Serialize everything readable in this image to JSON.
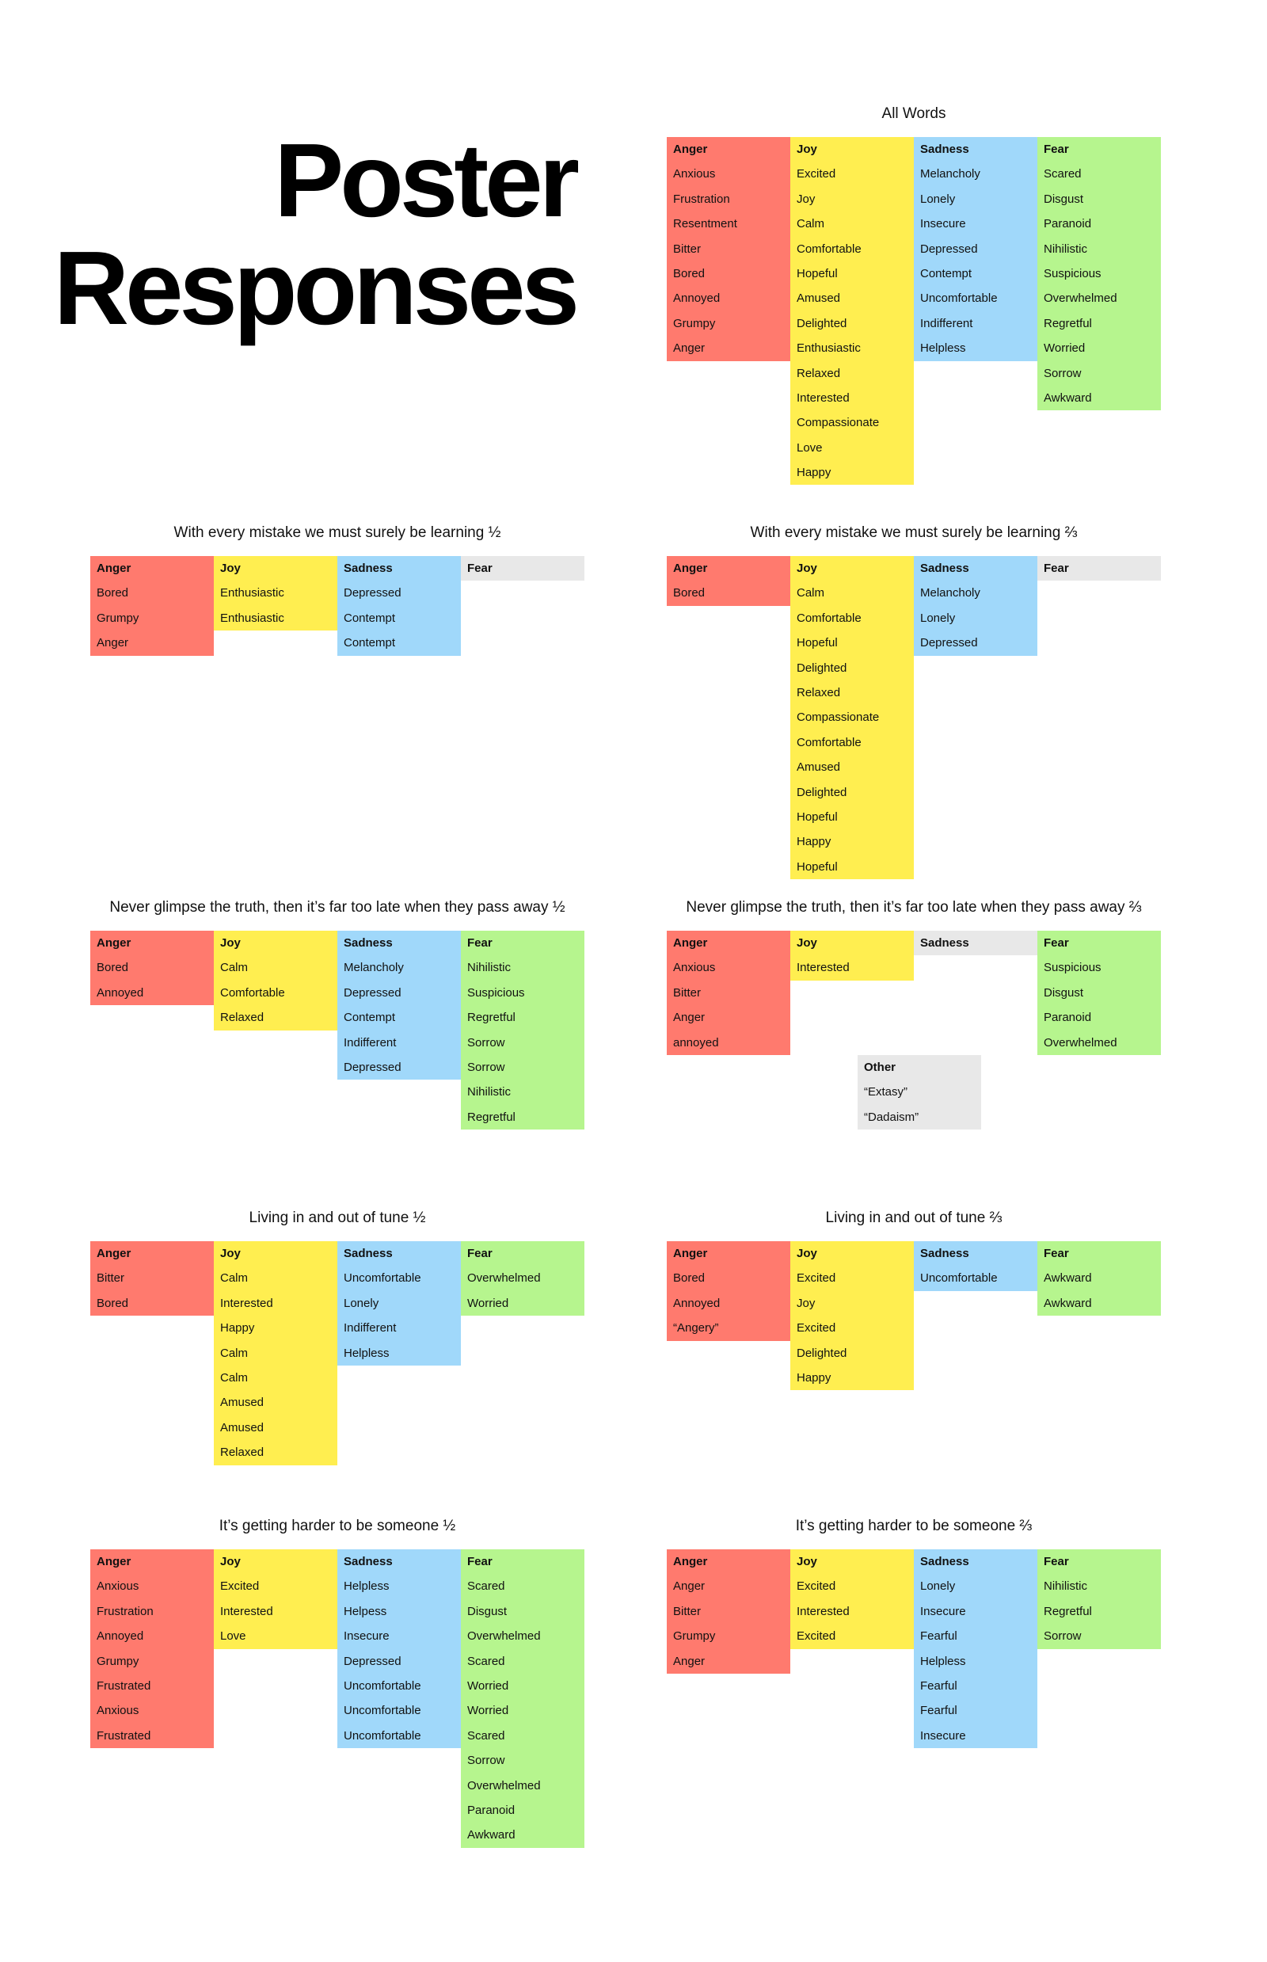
{
  "title": {
    "line1": "Poster",
    "line2": "Responses"
  },
  "colors": {
    "Anger": "#FF7A6E",
    "Joy": "#FFEE50",
    "Sadness": "#A0D8FA",
    "Fear": "#B6F58E",
    "empty": "#E8E8E8"
  },
  "sections": [
    {
      "title": "All Words",
      "columns": [
        {
          "label": "Anger",
          "words": [
            "Anxious",
            "Frustration",
            "Resentment",
            "Bitter",
            "Bored",
            "Annoyed",
            "Grumpy",
            "Anger"
          ]
        },
        {
          "label": "Joy",
          "words": [
            "Excited",
            "Joy",
            "Calm",
            "Comfortable",
            "Hopeful",
            "Amused",
            "Delighted",
            "Enthusiastic",
            "Relaxed",
            "Interested",
            "Compassionate",
            "Love",
            "Happy"
          ]
        },
        {
          "label": "Sadness",
          "words": [
            "Melancholy",
            "Lonely",
            "Insecure",
            "Depressed",
            "Contempt",
            "Uncomfortable",
            "Indifferent",
            "Helpless"
          ]
        },
        {
          "label": "Fear",
          "words": [
            "Scared",
            "Disgust",
            "Paranoid",
            "Nihilistic",
            "Suspicious",
            "Overwhelmed",
            "Regretful",
            "Worried",
            "Sorrow",
            "Awkward"
          ]
        }
      ]
    },
    {
      "title": "With every mistake we must surely be learning ½",
      "columns": [
        {
          "label": "Anger",
          "words": [
            "Bored",
            "Grumpy",
            "Anger"
          ]
        },
        {
          "label": "Joy",
          "words": [
            "Enthusiastic",
            "Enthusiastic"
          ]
        },
        {
          "label": "Sadness",
          "words": [
            "Depressed",
            "Contempt",
            "Contempt"
          ]
        },
        {
          "label": "Fear",
          "words": []
        }
      ]
    },
    {
      "title": "With every mistake we must surely be learning ⅔",
      "columns": [
        {
          "label": "Anger",
          "words": [
            "Bored"
          ]
        },
        {
          "label": "Joy",
          "words": [
            "Calm",
            "Comfortable",
            "Hopeful",
            "Delighted",
            "Relaxed",
            "Compassionate",
            "Comfortable",
            "Amused",
            "Delighted",
            "Hopeful",
            "Happy",
            "Hopeful"
          ]
        },
        {
          "label": "Sadness",
          "words": [
            "Melancholy",
            "Lonely",
            "Depressed"
          ]
        },
        {
          "label": "Fear",
          "words": []
        }
      ]
    },
    {
      "title": "Never glimpse the truth, then it’s far too late when they pass away ½",
      "columns": [
        {
          "label": "Anger",
          "words": [
            "Bored",
            "Annoyed"
          ]
        },
        {
          "label": "Joy",
          "words": [
            "Calm",
            "Comfortable",
            "Relaxed"
          ]
        },
        {
          "label": "Sadness",
          "words": [
            "Melancholy",
            "Depressed",
            "Contempt",
            "Indifferent",
            "Depressed"
          ]
        },
        {
          "label": "Fear",
          "words": [
            "Nihilistic",
            "Suspicious",
            "Regretful",
            "Sorrow",
            "Sorrow",
            "Nihilistic",
            "Regretful"
          ]
        }
      ]
    },
    {
      "title": "Never glimpse the truth, then it’s far too late when they pass away ⅔",
      "columns": [
        {
          "label": "Anger",
          "words": [
            "Anxious",
            "Bitter",
            "Anger",
            "annoyed"
          ]
        },
        {
          "label": "Joy",
          "words": [
            "Interested"
          ]
        },
        {
          "label": "Sadness",
          "words": []
        },
        {
          "label": "Fear",
          "words": [
            "Suspicious",
            "Disgust",
            "Paranoid",
            "Overwhelmed"
          ]
        }
      ],
      "other": {
        "label": "Other",
        "words": [
          "“Extasy”",
          "“Dadaism”"
        ]
      }
    },
    {
      "title": "Living in and out of tune ½",
      "columns": [
        {
          "label": "Anger",
          "words": [
            "Bitter",
            "Bored"
          ]
        },
        {
          "label": "Joy",
          "words": [
            "Calm",
            "Interested",
            "Happy",
            "Calm",
            "Calm",
            "Amused",
            "Amused",
            "Relaxed"
          ]
        },
        {
          "label": "Sadness",
          "words": [
            "Uncomfortable",
            "Lonely",
            "Indifferent",
            "Helpless"
          ]
        },
        {
          "label": "Fear",
          "words": [
            "Overwhelmed",
            "Worried"
          ]
        }
      ]
    },
    {
      "title": "Living in and out of tune ⅔",
      "columns": [
        {
          "label": "Anger",
          "words": [
            "Bored",
            "Annoyed",
            "“Angery”"
          ]
        },
        {
          "label": "Joy",
          "words": [
            "Excited",
            "Joy",
            "Excited",
            "Delighted",
            "Happy"
          ]
        },
        {
          "label": "Sadness",
          "words": [
            "Uncomfortable"
          ]
        },
        {
          "label": "Fear",
          "words": [
            "Awkward",
            "Awkward"
          ]
        }
      ]
    },
    {
      "title": "It’s getting harder to be someone ½",
      "columns": [
        {
          "label": "Anger",
          "words": [
            "Anxious",
            "Frustration",
            "Annoyed",
            "Grumpy",
            "Frustrated",
            "Anxious",
            "Frustrated"
          ]
        },
        {
          "label": "Joy",
          "words": [
            "Excited",
            "Interested",
            "Love"
          ]
        },
        {
          "label": "Sadness",
          "words": [
            "Helpless",
            "Helpess",
            "Insecure",
            "Depressed",
            "Uncomfortable",
            "Uncomfortable",
            "Uncomfortable"
          ]
        },
        {
          "label": "Fear",
          "words": [
            "Scared",
            "Disgust",
            "Overwhelmed",
            "Scared",
            "Worried",
            "Worried",
            "Scared",
            "Sorrow",
            "Overwhelmed",
            "Paranoid",
            "Awkward"
          ]
        }
      ]
    },
    {
      "title": "It’s getting harder to be someone ⅔",
      "columns": [
        {
          "label": "Anger",
          "words": [
            "Anger",
            "Bitter",
            "Grumpy",
            "Anger"
          ]
        },
        {
          "label": "Joy",
          "words": [
            "Excited",
            "Interested",
            "Excited"
          ]
        },
        {
          "label": "Sadness",
          "words": [
            "Lonely",
            "Insecure",
            "Fearful",
            "Helpless",
            "Fearful",
            "Fearful",
            "Insecure"
          ]
        },
        {
          "label": "Fear",
          "words": [
            "Nihilistic",
            "Regretful",
            "Sorrow"
          ]
        }
      ]
    }
  ]
}
